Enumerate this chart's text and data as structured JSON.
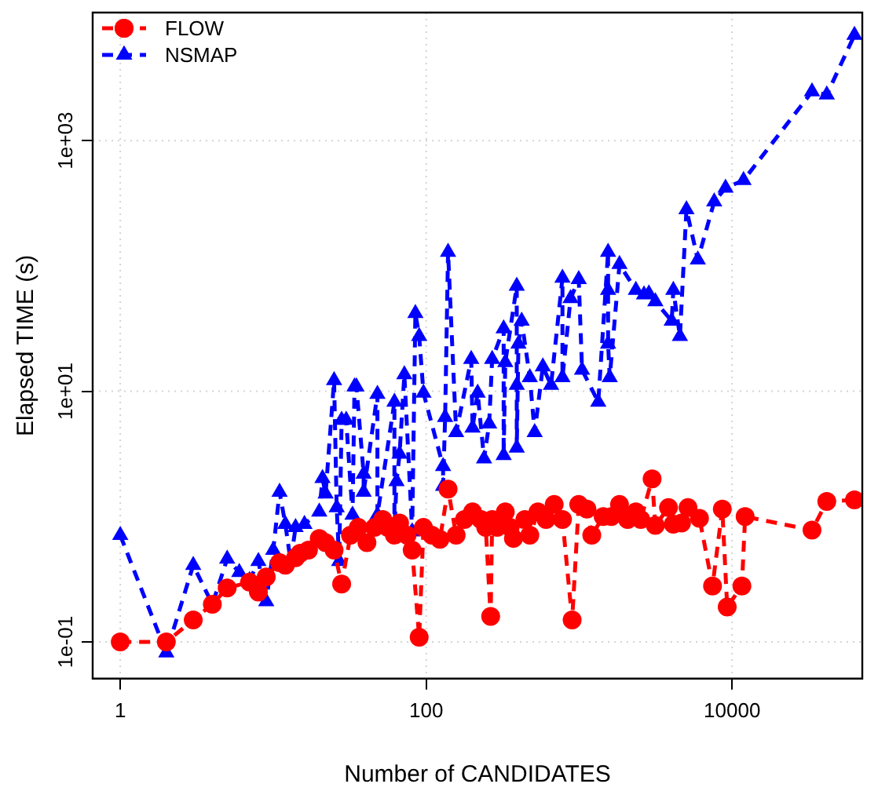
{
  "chart_data": {
    "type": "line",
    "xlabel": "Number of CANDIDATES",
    "ylabel": "Elapsed TIME (s)",
    "log": "xy",
    "grid": true,
    "legend": "top left",
    "line_style": "dashed",
    "xlim": [
      0.66,
      71000
    ],
    "ylim": [
      0.051,
      10500
    ],
    "xticks": [
      1,
      100,
      10000
    ],
    "yticks": [
      {
        "value": 0.1,
        "label": "1e-01"
      },
      {
        "value": 10,
        "label": "1e+01"
      },
      {
        "value": 1000,
        "label": "1e+03"
      }
    ],
    "series": [
      {
        "name": "FLOW",
        "color": "#ff0000",
        "marker": "circle",
        "x": [
          1,
          2,
          3,
          4,
          5,
          7,
          8,
          9,
          11,
          12,
          14,
          15,
          17,
          20,
          22,
          25,
          28,
          32,
          36,
          41,
          46,
          52,
          56,
          62,
          67,
          75,
          81,
          90,
          96,
          109,
          123,
          139,
          157,
          178,
          201,
          228,
          245,
          264,
          270,
          291,
          329,
          354,
          372,
          442,
          476,
          538,
          608,
          687,
          778,
          900,
          994,
          1125,
          1210,
          1436,
          1625,
          1836,
          2075,
          2349,
          2530,
          3000,
          3150,
          3840,
          4130,
          4670,
          5150,
          6120,
          7450,
          8630,
          9290,
          11590,
          12170,
          33300,
          41600,
          63100
        ],
        "values": [
          0.1,
          0.1,
          0.15,
          0.2,
          0.27,
          0.3,
          0.25,
          0.33,
          0.43,
          0.41,
          0.47,
          0.51,
          0.54,
          0.67,
          0.62,
          0.54,
          0.29,
          0.71,
          0.82,
          0.62,
          0.82,
          0.95,
          0.82,
          0.71,
          0.89,
          0.71,
          0.54,
          0.109,
          0.82,
          0.71,
          0.66,
          1.66,
          0.71,
          0.95,
          1.09,
          0.95,
          0.82,
          0.16,
          0.95,
          0.82,
          1.09,
          0.82,
          0.67,
          0.95,
          0.71,
          1.09,
          0.95,
          1.25,
          0.95,
          0.15,
          1.25,
          1.15,
          0.71,
          1.0,
          1.0,
          1.25,
          0.95,
          1.09,
          0.95,
          2.0,
          0.85,
          1.18,
          0.87,
          0.89,
          1.18,
          0.97,
          0.28,
          1.15,
          0.19,
          0.28,
          1.0,
          0.78,
          1.32,
          1.36
        ]
      },
      {
        "name": "NSMAP",
        "color": "#0000ff",
        "marker": "triangle",
        "x": [
          1,
          2,
          3,
          4,
          5,
          6,
          7,
          8,
          9,
          10,
          11,
          12,
          13,
          14,
          16,
          20,
          21,
          22,
          25,
          26,
          27,
          28,
          30,
          33,
          34,
          35,
          39,
          39,
          48,
          48,
          62,
          62,
          64,
          67,
          72,
          81,
          85,
          90,
          96,
          129,
          129,
          133,
          139,
          157,
          197,
          201,
          217,
          239,
          258,
          270,
          321,
          321,
          329,
          391,
          391,
          391,
          401,
          421,
          476,
          512,
          579,
          655,
          778,
          778,
          879,
          994,
          1045,
          1334,
          1546,
          1546,
          1546,
          1585,
          1836,
          2349,
          2655,
          2858,
          3150,
          4030,
          4130,
          4560,
          5030,
          5970,
          7640,
          9060,
          11880,
          33300,
          41600,
          63100
        ],
        "values": [
          0.71,
          0.082,
          0.41,
          0.2,
          0.46,
          0.36,
          0.31,
          0.44,
          0.21,
          0.54,
          1.57,
          0.87,
          0.44,
          0.82,
          0.87,
          1.09,
          2.02,
          1.52,
          12.2,
          1.18,
          0.44,
          5.9,
          5.9,
          1.03,
          10.9,
          10.9,
          2.19,
          1.57,
          9.5,
          1.03,
          8.2,
          0.76,
          1.91,
          3.16,
          13.6,
          0.76,
          41.9,
          27.5,
          9.7,
          2.52,
          1.75,
          6.2,
          129,
          4.7,
          18,
          5.1,
          9.7,
          2.9,
          5.5,
          18,
          31.6,
          3.08,
          17,
          69,
          11.2,
          3.54,
          23.9,
          36.4,
          12.9,
          4.7,
          15.7,
          11.2,
          80,
          12.9,
          55,
          78,
          14.8,
          8.2,
          129,
          64,
          23.9,
          12.9,
          103,
          64,
          59,
          60,
          52,
          36.4,
          64,
          27.5,
          282,
          112,
          325,
          419,
          482,
          2455,
          2320,
          6930
        ]
      }
    ]
  }
}
